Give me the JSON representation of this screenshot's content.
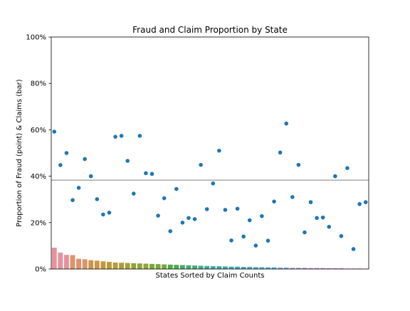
{
  "chart_data": {
    "type": "bar+scatter",
    "title": "Fraud and Claim Proportion by State",
    "xlabel": "States Sorted by Claim Counts",
    "ylabel": "Proportion of Fraud (point) & Claims (bar)",
    "ylim": [
      0,
      1
    ],
    "yticks": [
      {
        "value": 0.0,
        "label": "0%"
      },
      {
        "value": 0.2,
        "label": "20%"
      },
      {
        "value": 0.4,
        "label": "40%"
      },
      {
        "value": 0.6,
        "label": "60%"
      },
      {
        "value": 0.8,
        "label": "80%"
      },
      {
        "value": 1.0,
        "label": "100%"
      }
    ],
    "xticks_visible": false,
    "grid": false,
    "reference_line": {
      "value": 0.383,
      "color": "#999999"
    },
    "category_count": 52,
    "claim_proportion_bars": [
      0.092,
      0.071,
      0.061,
      0.06,
      0.044,
      0.042,
      0.038,
      0.036,
      0.033,
      0.031,
      0.028,
      0.027,
      0.026,
      0.025,
      0.024,
      0.023,
      0.022,
      0.021,
      0.02,
      0.019,
      0.018,
      0.017,
      0.016,
      0.015,
      0.014,
      0.013,
      0.012,
      0.012,
      0.011,
      0.01,
      0.01,
      0.009,
      0.009,
      0.008,
      0.008,
      0.007,
      0.007,
      0.006,
      0.006,
      0.005,
      0.005,
      0.005,
      0.004,
      0.004,
      0.004,
      0.003,
      0.003,
      0.003,
      0.002,
      0.002,
      0.002,
      0.001
    ],
    "fraud_proportion_points": [
      0.592,
      0.448,
      0.5,
      0.297,
      0.35,
      0.474,
      0.4,
      0.301,
      0.235,
      0.243,
      0.57,
      0.574,
      0.466,
      0.325,
      0.574,
      0.413,
      0.41,
      0.23,
      0.305,
      0.163,
      0.345,
      0.2,
      0.22,
      0.215,
      0.449,
      0.258,
      0.369,
      0.51,
      0.255,
      0.123,
      0.26,
      0.14,
      0.21,
      0.101,
      0.228,
      0.122,
      0.291,
      0.502,
      0.627,
      0.31,
      0.449,
      0.158,
      0.288,
      0.22,
      0.222,
      0.182,
      0.4,
      0.142,
      0.435,
      0.086,
      0.28,
      0.288
    ],
    "colors": {
      "point": "#1f77b4",
      "reference_line": "#999999",
      "axis": "#000000",
      "bar_palette": [
        "#e8919a",
        "#e0926a",
        "#cf9448",
        "#bc9a3c",
        "#a89e3c",
        "#92a33c",
        "#78a73c",
        "#4fab49",
        "#41ab72",
        "#3faa8c",
        "#3fa8a0",
        "#40a6b0",
        "#44a5c0",
        "#52a3d2",
        "#7b9fe0",
        "#a493e8",
        "#c285e8",
        "#d77ad8",
        "#e37ec1",
        "#e88aaa"
      ]
    }
  }
}
